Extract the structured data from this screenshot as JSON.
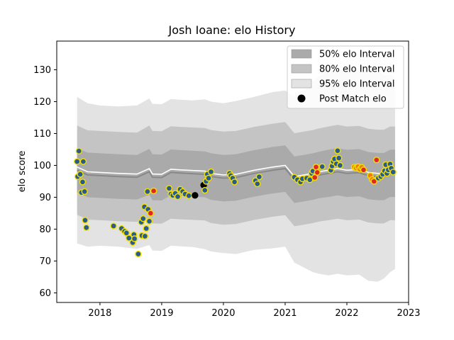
{
  "chart_data": {
    "type": "scatter",
    "title": "Josh Ioane: elo History",
    "xlabel": "",
    "ylabel": "elo score",
    "xlim": [
      2017.3,
      2023.0
    ],
    "ylim": [
      57,
      139
    ],
    "x_ticks": [
      2018,
      2019,
      2020,
      2021,
      2022,
      2023
    ],
    "x_tick_labels": [
      "2018",
      "2019",
      "2020",
      "2021",
      "2022",
      "2023"
    ],
    "y_ticks": [
      60,
      70,
      80,
      90,
      100,
      110,
      120,
      130
    ],
    "y_tick_labels": [
      "60",
      "70",
      "80",
      "90",
      "100",
      "110",
      "120",
      "130"
    ],
    "legend_position": "top-right",
    "legend": [
      {
        "label": "50% elo Interval",
        "kind": "band",
        "color": "#aaaaaa"
      },
      {
        "label": "80% elo Interval",
        "kind": "band",
        "color": "#c4c4c4"
      },
      {
        "label": "95% elo Interval",
        "kind": "band",
        "color": "#e3e3e3"
      },
      {
        "label": "Post Match elo",
        "kind": "point",
        "color": "#000000"
      }
    ],
    "band_x": [
      2017.63,
      2017.8,
      2018.0,
      2018.3,
      2018.6,
      2018.8,
      2018.85,
      2019.0,
      2019.15,
      2019.3,
      2019.5,
      2019.7,
      2019.8,
      2020.0,
      2020.2,
      2020.5,
      2020.8,
      2021.0,
      2021.15,
      2021.3,
      2021.45,
      2021.55,
      2021.7,
      2021.85,
      2022.0,
      2022.2,
      2022.35,
      2022.5,
      2022.6,
      2022.7,
      2022.78
    ],
    "band_center": [
      98.5,
      97,
      96.8,
      96.5,
      96.3,
      98,
      96.3,
      96.2,
      97.8,
      97.6,
      97.4,
      97.2,
      96.5,
      96,
      96.2,
      97.5,
      98.5,
      99,
      95.5,
      96,
      96.5,
      97,
      97.5,
      98,
      97.5,
      97.7,
      96.8,
      96.5,
      96.5,
      97.5,
      97.5
    ],
    "band_50": [
      7,
      7,
      7,
      7,
      7,
      7.2,
      7.2,
      7.2,
      7.2,
      7.2,
      7.2,
      7.2,
      7.3,
      7.3,
      7.3,
      7.3,
      7.3,
      7.3,
      7.3,
      7.3,
      7.3,
      7.3,
      7.4,
      7.4,
      7.4,
      7.4,
      7.4,
      7.4,
      7.4,
      7.4,
      7.4
    ],
    "band_80": [
      14,
      14,
      14,
      14,
      14,
      14.5,
      14.5,
      14.5,
      14.5,
      14.5,
      14.5,
      14.5,
      14.6,
      14.6,
      14.6,
      14.6,
      14.6,
      14.6,
      14.6,
      14.6,
      14.6,
      14.6,
      14.7,
      14.7,
      14.7,
      14.7,
      14.7,
      14.7,
      14.7,
      14.7,
      14.7
    ],
    "band_95": [
      23,
      22.5,
      22,
      22,
      22.5,
      23,
      23,
      23,
      23,
      23,
      23,
      23.5,
      23.5,
      23.5,
      24,
      24,
      24.5,
      24.5,
      26,
      28,
      30,
      31,
      32,
      32,
      32,
      32,
      33,
      33,
      32,
      31,
      30
    ],
    "series": [
      {
        "name": "Post Match elo",
        "points": [
          {
            "x": 2017.63,
            "y": 101.2,
            "c": "#2a5b8a"
          },
          {
            "x": 2017.64,
            "y": 96.5,
            "c": "#2a5b8a"
          },
          {
            "x": 2017.66,
            "y": 104.5,
            "c": "#2a5b8a"
          },
          {
            "x": 2017.68,
            "y": 97.2,
            "c": "#2a5b8a"
          },
          {
            "x": 2017.7,
            "y": 91.5,
            "c": "#2a5b8a"
          },
          {
            "x": 2017.72,
            "y": 94.8,
            "c": "#2a5b8a"
          },
          {
            "x": 2017.73,
            "y": 101.2,
            "c": "#2a5b8a"
          },
          {
            "x": 2017.75,
            "y": 91.8,
            "c": "#2a5b8a"
          },
          {
            "x": 2017.76,
            "y": 82.8,
            "c": "#2a5b8a"
          },
          {
            "x": 2017.78,
            "y": 80.5,
            "c": "#2a5b8a"
          },
          {
            "x": 2018.22,
            "y": 81.0,
            "c": "#2a5b8a"
          },
          {
            "x": 2018.35,
            "y": 80.2,
            "c": "#2a5b8a"
          },
          {
            "x": 2018.4,
            "y": 79.3,
            "c": "#2a5b8a"
          },
          {
            "x": 2018.43,
            "y": 78.8,
            "c": "#2a5b8a"
          },
          {
            "x": 2018.47,
            "y": 77.2,
            "c": "#2a5b8a"
          },
          {
            "x": 2018.53,
            "y": 75.8,
            "c": "#2a5b8a"
          },
          {
            "x": 2018.55,
            "y": 78.3,
            "c": "#2a5b8a"
          },
          {
            "x": 2018.56,
            "y": 77.0,
            "c": "#2a5b8a"
          },
          {
            "x": 2018.62,
            "y": 72.2,
            "c": "#2a5b8a"
          },
          {
            "x": 2018.67,
            "y": 82.2,
            "c": "#2a5b8a"
          },
          {
            "x": 2018.68,
            "y": 78.0,
            "c": "#2a5b8a"
          },
          {
            "x": 2018.7,
            "y": 83.3,
            "c": "#2a5b8a"
          },
          {
            "x": 2018.72,
            "y": 87.0,
            "c": "#2a5b8a"
          },
          {
            "x": 2018.73,
            "y": 77.8,
            "c": "#2a5b8a"
          },
          {
            "x": 2018.75,
            "y": 80.2,
            "c": "#2a5b8a"
          },
          {
            "x": 2018.77,
            "y": 91.8,
            "c": "#2a5b8a"
          },
          {
            "x": 2018.78,
            "y": 86.2,
            "c": "#2a5b8a"
          },
          {
            "x": 2018.8,
            "y": 82.5,
            "c": "#2a5b8a"
          },
          {
            "x": 2018.82,
            "y": 85.0,
            "c": "#e0262b"
          },
          {
            "x": 2018.87,
            "y": 92.0,
            "c": "#e0262b"
          },
          {
            "x": 2019.12,
            "y": 92.8,
            "c": "#2a5b8a"
          },
          {
            "x": 2019.15,
            "y": 91.0,
            "c": "#2a5b8a"
          },
          {
            "x": 2019.18,
            "y": 90.6,
            "c": "#2a5b8a"
          },
          {
            "x": 2019.22,
            "y": 91.2,
            "c": "#2a5b8a"
          },
          {
            "x": 2019.26,
            "y": 90.2,
            "c": "#2a5b8a"
          },
          {
            "x": 2019.3,
            "y": 92.5,
            "c": "#2a5b8a"
          },
          {
            "x": 2019.34,
            "y": 91.8,
            "c": "#2a5b8a"
          },
          {
            "x": 2019.38,
            "y": 91.0,
            "c": "#2a5b8a"
          },
          {
            "x": 2019.44,
            "y": 90.5,
            "c": "#2a5b8a"
          },
          {
            "x": 2019.54,
            "y": 90.6,
            "c": "#000000"
          },
          {
            "x": 2019.68,
            "y": 93.8,
            "c": "#000000"
          },
          {
            "x": 2019.7,
            "y": 92.2,
            "c": "#2a5b8a"
          },
          {
            "x": 2019.72,
            "y": 95.0,
            "c": "#2a5b8a"
          },
          {
            "x": 2019.74,
            "y": 97.2,
            "c": "#2a5b8a"
          },
          {
            "x": 2019.76,
            "y": 96.0,
            "c": "#2a5b8a"
          },
          {
            "x": 2019.8,
            "y": 98.0,
            "c": "#2a5b8a"
          },
          {
            "x": 2020.1,
            "y": 97.5,
            "c": "#2a5b8a"
          },
          {
            "x": 2020.12,
            "y": 96.8,
            "c": "#2a5b8a"
          },
          {
            "x": 2020.15,
            "y": 96.0,
            "c": "#2a5b8a"
          },
          {
            "x": 2020.18,
            "y": 94.8,
            "c": "#2a5b8a"
          },
          {
            "x": 2020.52,
            "y": 95.2,
            "c": "#2a5b8a"
          },
          {
            "x": 2020.55,
            "y": 94.2,
            "c": "#2a5b8a"
          },
          {
            "x": 2020.58,
            "y": 96.4,
            "c": "#2a5b8a"
          },
          {
            "x": 2021.15,
            "y": 96.3,
            "c": "#2a5b8a"
          },
          {
            "x": 2021.2,
            "y": 95.5,
            "c": "#2a5b8a"
          },
          {
            "x": 2021.25,
            "y": 94.8,
            "c": "#2a5b8a"
          },
          {
            "x": 2021.28,
            "y": 95.8,
            "c": "#2a5b8a"
          },
          {
            "x": 2021.35,
            "y": 96.0,
            "c": "#2a5b8a"
          },
          {
            "x": 2021.4,
            "y": 95.5,
            "c": "#2a5b8a"
          },
          {
            "x": 2021.43,
            "y": 97.5,
            "c": "#2a5b8a"
          },
          {
            "x": 2021.45,
            "y": 98.2,
            "c": "#2a5b8a"
          },
          {
            "x": 2021.48,
            "y": 96.2,
            "c": "#e0262b"
          },
          {
            "x": 2021.5,
            "y": 99.5,
            "c": "#e0262b"
          },
          {
            "x": 2021.52,
            "y": 97.8,
            "c": "#e0262b"
          },
          {
            "x": 2021.6,
            "y": 99.6,
            "c": "#2a5b8a"
          },
          {
            "x": 2021.74,
            "y": 98.5,
            "c": "#2a5b8a"
          },
          {
            "x": 2021.76,
            "y": 99.8,
            "c": "#2a5b8a"
          },
          {
            "x": 2021.78,
            "y": 101.2,
            "c": "#2a5b8a"
          },
          {
            "x": 2021.8,
            "y": 102.0,
            "c": "#2a5b8a"
          },
          {
            "x": 2021.83,
            "y": 100.5,
            "c": "#2a5b8a"
          },
          {
            "x": 2021.85,
            "y": 104.6,
            "c": "#2a5b8a"
          },
          {
            "x": 2021.87,
            "y": 102.3,
            "c": "#2a5b8a"
          },
          {
            "x": 2021.89,
            "y": 100.0,
            "c": "#2a5b8a"
          },
          {
            "x": 2022.12,
            "y": 99.5,
            "c": "#f07a10"
          },
          {
            "x": 2022.15,
            "y": 99.2,
            "c": "#f07a10"
          },
          {
            "x": 2022.18,
            "y": 99.6,
            "c": "#f07a10"
          },
          {
            "x": 2022.21,
            "y": 98.8,
            "c": "#f07a10"
          },
          {
            "x": 2022.24,
            "y": 99.4,
            "c": "#f07a10"
          },
          {
            "x": 2022.27,
            "y": 98.6,
            "c": "#e0262b"
          },
          {
            "x": 2022.38,
            "y": 96.8,
            "c": "#f07a10"
          },
          {
            "x": 2022.41,
            "y": 95.6,
            "c": "#f07a10"
          },
          {
            "x": 2022.44,
            "y": 95.0,
            "c": "#e0262b"
          },
          {
            "x": 2022.48,
            "y": 101.7,
            "c": "#e0262b"
          },
          {
            "x": 2022.51,
            "y": 96.0,
            "c": "#2a5b8a"
          },
          {
            "x": 2022.55,
            "y": 96.5,
            "c": "#2a5b8a"
          },
          {
            "x": 2022.58,
            "y": 97.2,
            "c": "#2a5b8a"
          },
          {
            "x": 2022.61,
            "y": 98.3,
            "c": "#2a5b8a"
          },
          {
            "x": 2022.63,
            "y": 100.2,
            "c": "#2a5b8a"
          },
          {
            "x": 2022.65,
            "y": 97.5,
            "c": "#2a5b8a"
          },
          {
            "x": 2022.67,
            "y": 98.6,
            "c": "#2a5b8a"
          },
          {
            "x": 2022.7,
            "y": 100.4,
            "c": "#2a5b8a"
          },
          {
            "x": 2022.72,
            "y": 99.1,
            "c": "#2a5b8a"
          },
          {
            "x": 2022.75,
            "y": 97.9,
            "c": "#2a5b8a"
          }
        ]
      }
    ]
  }
}
